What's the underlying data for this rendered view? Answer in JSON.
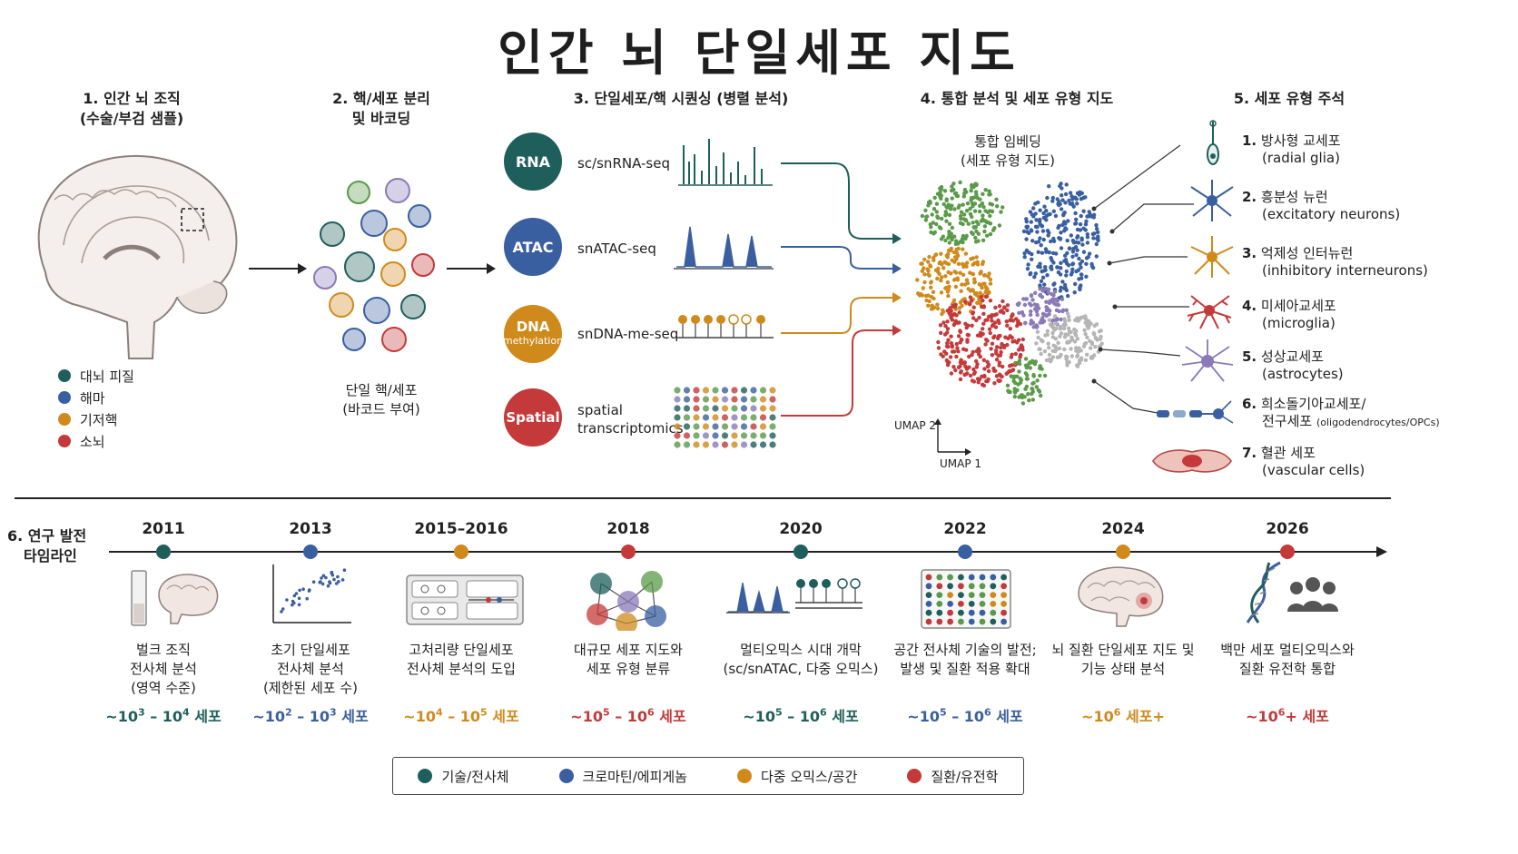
{
  "title": "인간 뇌 단일세포 지도",
  "colors": {
    "teal": "#1f5f5b",
    "blue": "#3a5fa0",
    "gold": "#d08a1c",
    "red": "#c43a3a",
    "green": "#5a9a4a",
    "purple": "#8a7ab8",
    "gray": "#b5b5b5"
  },
  "step1": {
    "title_line1": "1. 인간 뇌 조직",
    "title_line2": "(수술/부검 샘플)",
    "legend": [
      {
        "label": "대뇌 피질",
        "color": "#1f5f5b"
      },
      {
        "label": "해마",
        "color": "#3a5fa0"
      },
      {
        "label": "기저핵",
        "color": "#d08a1c"
      },
      {
        "label": "소뇌",
        "color": "#c43a3a"
      }
    ]
  },
  "step2": {
    "title_line1": "2. 핵/세포 분리",
    "title_line2": "및 바코딩",
    "caption_line1": "단일 핵/세포",
    "caption_line2": "(바코드 부여)"
  },
  "step3": {
    "title": "3. 단일세포/핵 시퀀싱 (병렬 분석)",
    "assays": [
      {
        "badge": "RNA",
        "badge_sub": "",
        "label_line1": "sc/snRNA-seq",
        "label_line2": "",
        "color": "#1f5f5b"
      },
      {
        "badge": "ATAC",
        "badge_sub": "",
        "label_line1": "snATAC-seq",
        "label_line2": "",
        "color": "#3a5fa0"
      },
      {
        "badge": "DNA",
        "badge_sub": "methylation",
        "label_line1": "snDNA-me-seq",
        "label_line2": "",
        "color": "#d08a1c"
      },
      {
        "badge": "Spatial",
        "badge_sub": "",
        "label_line1": "spatial",
        "label_line2": "transcriptomics",
        "color": "#c43a3a"
      }
    ]
  },
  "step4": {
    "title": "4. 통합 분석 및 세포 유형 지도",
    "sub_line1": "통합 임베딩",
    "sub_line2": "(세포 유형 지도)",
    "axis_y": "UMAP 2",
    "axis_x": "UMAP 1"
  },
  "step5": {
    "title": "5. 세포 유형 주석",
    "types": [
      {
        "num": "1.",
        "ko": "방사형 교세포",
        "en": "(radial glia)",
        "color": "#1f5f5b"
      },
      {
        "num": "2.",
        "ko": "흥분성 뉴런",
        "en": "(excitatory neurons)",
        "color": "#3a5fa0"
      },
      {
        "num": "3.",
        "ko": "억제성 인터뉴런",
        "en": "(inhibitory interneurons)",
        "color": "#d08a1c"
      },
      {
        "num": "4.",
        "ko": "미세아교세포",
        "en": "(microglia)",
        "color": "#c43a3a"
      },
      {
        "num": "5.",
        "ko": "성상교세포",
        "en": "(astrocytes)",
        "color": "#8a7ab8"
      },
      {
        "num": "6.",
        "ko": "희소돌기아교세포/",
        "en": "전구세포",
        "en_small": "(oligodendrocytes/OPCs)",
        "color": "#3a5fa0"
      },
      {
        "num": "7.",
        "ko": "혈관 세포",
        "en": "(vascular cells)",
        "color": "#c43a3a"
      }
    ]
  },
  "timeline": {
    "title_line1": "6. 연구 발전",
    "title_line2": "타임라인",
    "events": [
      {
        "year": "2011",
        "color": "#1f5f5b",
        "line1": "벌크 조직",
        "line2": "전사체 분석",
        "line3": "(영역 수준)",
        "c_pre": "~10",
        "c_e1": "3",
        "c_mid": " – 10",
        "c_e2": "4",
        "c_post": " 세포"
      },
      {
        "year": "2013",
        "color": "#3a5fa0",
        "line1": "초기 단일세포",
        "line2": "전사체 분석",
        "line3": "(제한된 세포 수)",
        "c_pre": "~10",
        "c_e1": "2",
        "c_mid": " – 10",
        "c_e2": "3",
        "c_post": " 세포"
      },
      {
        "year": "2015–2016",
        "color": "#d08a1c",
        "line1": "고처리량 단일세포",
        "line2": "전사체 분석의 도입",
        "line3": "",
        "c_pre": "~10",
        "c_e1": "4",
        "c_mid": " – 10",
        "c_e2": "5",
        "c_post": " 세포"
      },
      {
        "year": "2018",
        "color": "#c43a3a",
        "line1": "대규모 세포 지도와",
        "line2": "세포 유형 분류",
        "line3": "",
        "c_pre": "~10",
        "c_e1": "5",
        "c_mid": " – 10",
        "c_e2": "6",
        "c_post": " 세포"
      },
      {
        "year": "2020",
        "color": "#1f5f5b",
        "line1": "멀티오믹스 시대 개막",
        "line2": "(sc/snATAC, 다중 오믹스)",
        "line3": "",
        "c_pre": "~10",
        "c_e1": "5",
        "c_mid": " – 10",
        "c_e2": "6",
        "c_post": " 세포"
      },
      {
        "year": "2022",
        "color": "#3a5fa0",
        "line1": "공간 전사체 기술의 발전;",
        "line2": "발생 및 질환 적용 확대",
        "line3": "",
        "c_pre": "~10",
        "c_e1": "5",
        "c_mid": " – 10",
        "c_e2": "6",
        "c_post": " 세포"
      },
      {
        "year": "2024",
        "color": "#d08a1c",
        "line1": "뇌 질환 단일세포 지도 및",
        "line2": "기능 상태 분석",
        "line3": "",
        "c_pre": "~10",
        "c_e1": "6",
        "c_mid": "",
        "c_e2": "",
        "c_post": " 세포+"
      },
      {
        "year": "2026",
        "color": "#c43a3a",
        "line1": "백만 세포 멀티오믹스와",
        "line2": "질환 유전학 통합",
        "line3": "",
        "c_pre": "~10",
        "c_e1": "6",
        "c_mid": "",
        "c_e2": "",
        "c_post": "+ 세포"
      }
    ]
  },
  "bottom_legend": [
    {
      "label": "기술/전사체",
      "color": "#1f5f5b"
    },
    {
      "label": "크로마틴/에피게놈",
      "color": "#3a5fa0"
    },
    {
      "label": "다중 오믹스/공간",
      "color": "#d08a1c"
    },
    {
      "label": "질환/유전학",
      "color": "#c43a3a"
    }
  ]
}
